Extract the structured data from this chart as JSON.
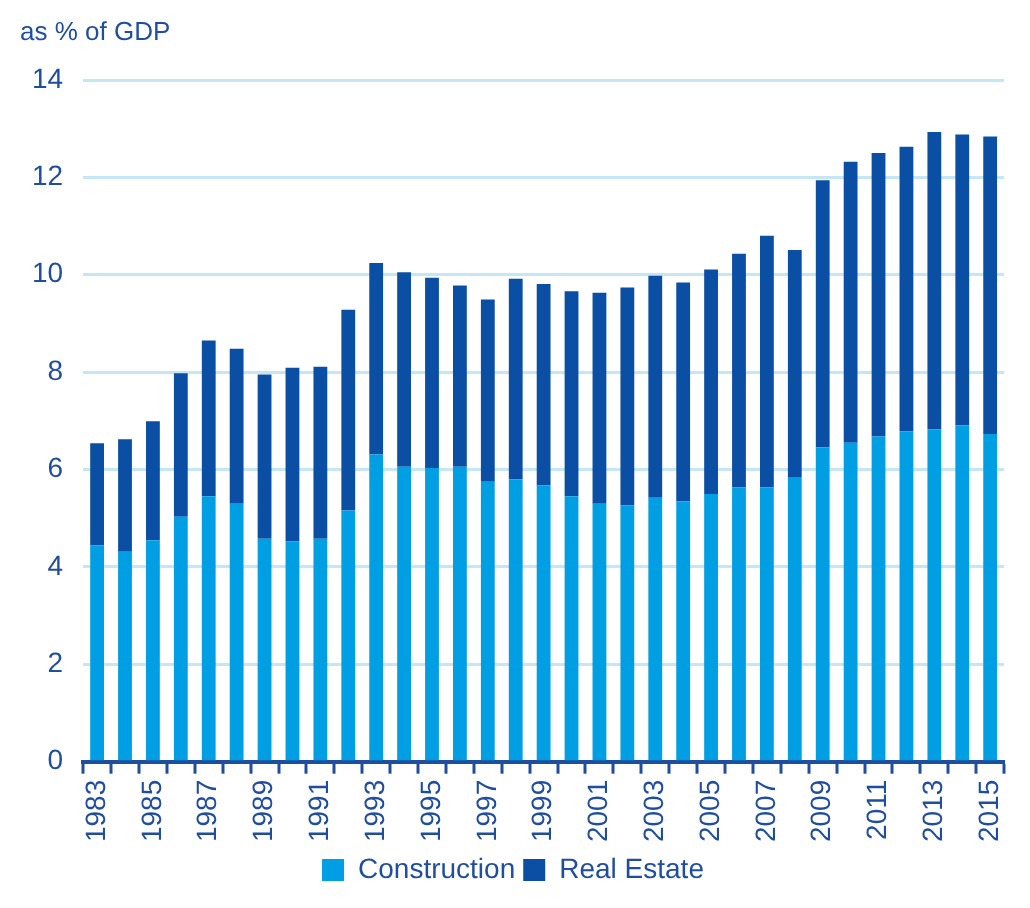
{
  "chart_data": {
    "type": "bar",
    "stacked": true,
    "ylabel": "as % of GDP",
    "categories": [
      "1983",
      null,
      "1985",
      null,
      "1987",
      null,
      "1989",
      null,
      "1991",
      null,
      "1993",
      null,
      "1995",
      null,
      "1997",
      null,
      "1999",
      null,
      "2001",
      null,
      "2003",
      null,
      "2005",
      null,
      "2007",
      null,
      "2009",
      null,
      "2011",
      null,
      "2013",
      null,
      "2015"
    ],
    "series": [
      {
        "name": "Construction",
        "color": "#009fe3",
        "values": [
          4.44,
          4.31,
          4.55,
          5.03,
          5.45,
          5.3,
          4.58,
          4.52,
          4.58,
          5.16,
          6.31,
          6.06,
          6.03,
          6.06,
          5.75,
          5.8,
          5.67,
          5.45,
          5.3,
          5.26,
          5.42,
          5.35,
          5.5,
          5.63,
          5.63,
          5.83,
          6.46,
          6.55,
          6.68,
          6.78,
          6.83,
          6.91,
          6.73
        ]
      },
      {
        "name": "Real Estate",
        "color": "#0a4fa3",
        "values": [
          2.1,
          2.31,
          2.44,
          2.95,
          3.2,
          3.18,
          3.37,
          3.57,
          3.53,
          4.12,
          3.93,
          3.99,
          3.91,
          3.72,
          3.74,
          4.12,
          4.14,
          4.21,
          4.33,
          4.48,
          4.56,
          4.49,
          4.61,
          4.8,
          5.17,
          4.68,
          5.48,
          5.77,
          5.82,
          5.85,
          6.1,
          5.97,
          6.11
        ]
      }
    ],
    "ylim": [
      0,
      14
    ],
    "yticks": [
      0,
      2,
      4,
      6,
      8,
      10,
      12,
      14
    ],
    "grid": "y",
    "legend": "bottom"
  }
}
